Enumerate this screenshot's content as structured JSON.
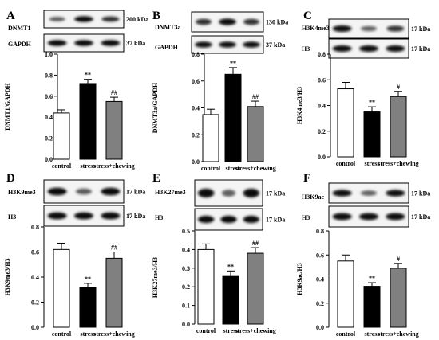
{
  "colors": {
    "control": "#ffffff",
    "stress": "#000000",
    "stress_chewing": "#808080",
    "bar_stroke": "#000000"
  },
  "chart_data": [
    {
      "panel": "A",
      "type": "bar",
      "categories": [
        "control",
        "stress",
        "stress+chewing"
      ],
      "values": [
        0.44,
        0.72,
        0.55
      ],
      "errors": [
        0.03,
        0.04,
        0.04
      ],
      "significance": [
        "",
        "**",
        "##"
      ],
      "ylabel": "DNMT1/GAPDH",
      "ylim": [
        0,
        1.0
      ],
      "yticks": [
        "0.0",
        "0.2",
        "0.4",
        "0.6",
        "0.8",
        "1.0"
      ],
      "blots": [
        {
          "protein": "DNMT1",
          "kda": "200 kDa",
          "bands": [
            "weak",
            "strong",
            "medium"
          ]
        },
        {
          "protein": "GAPDH",
          "kda": "37 kDa",
          "bands": [
            "strong",
            "strong",
            "strong"
          ]
        }
      ]
    },
    {
      "panel": "B",
      "type": "bar",
      "categories": [
        "control",
        "stress",
        "stress+chewing"
      ],
      "values": [
        0.35,
        0.65,
        0.41
      ],
      "errors": [
        0.04,
        0.05,
        0.04
      ],
      "significance": [
        "",
        "**",
        "##"
      ],
      "ylabel": "DNMT3a/GAPDH",
      "ylim": [
        0,
        0.8
      ],
      "yticks": [
        "0.0",
        "0.2",
        "0.4",
        "0.6",
        "0.8"
      ],
      "blots": [
        {
          "protein": "DNMT3a",
          "kda": "130 kDa",
          "bands": [
            "medium",
            "strong",
            "medium"
          ]
        },
        {
          "protein": "GAPDH",
          "kda": "37 kDa",
          "bands": [
            "strong",
            "strong",
            "strong"
          ]
        }
      ]
    },
    {
      "panel": "C",
      "type": "bar",
      "categories": [
        "control",
        "stress",
        "stress+chewing"
      ],
      "values": [
        0.53,
        0.35,
        0.47
      ],
      "errors": [
        0.05,
        0.04,
        0.04
      ],
      "significance": [
        "",
        "**",
        "#"
      ],
      "ylabel": "H3K4me3/H3",
      "ylim": [
        0,
        0.8
      ],
      "yticks": [
        "0.0",
        "0.2",
        "0.4",
        "0.6",
        "0.8"
      ],
      "blots": [
        {
          "protein": "H3K4me3",
          "kda": "17 kDa",
          "bands": [
            "strong",
            "weak",
            "medium"
          ]
        },
        {
          "protein": "H3",
          "kda": "17 kDa",
          "bands": [
            "strong",
            "strong",
            "strong"
          ]
        }
      ]
    },
    {
      "panel": "D",
      "type": "bar",
      "categories": [
        "control",
        "stress",
        "stress+chewing"
      ],
      "values": [
        0.62,
        0.32,
        0.55
      ],
      "errors": [
        0.05,
        0.03,
        0.05
      ],
      "significance": [
        "",
        "**",
        "##"
      ],
      "ylabel": "H3K9me3/H3",
      "ylim": [
        0,
        0.8
      ],
      "yticks": [
        "0.0",
        "0.2",
        "0.4",
        "0.6",
        "0.8"
      ],
      "blots": [
        {
          "protein": "H3K9me3",
          "kda": "17 kDa",
          "bands": [
            "strong",
            "weak",
            "strong"
          ]
        },
        {
          "protein": "H3",
          "kda": "17 kDa",
          "bands": [
            "strong",
            "strong",
            "strong"
          ]
        }
      ]
    },
    {
      "panel": "E",
      "type": "bar",
      "categories": [
        "control",
        "stress",
        "stress+chewing"
      ],
      "values": [
        0.4,
        0.26,
        0.38
      ],
      "errors": [
        0.03,
        0.025,
        0.03
      ],
      "significance": [
        "",
        "**",
        "##"
      ],
      "ylabel": "H3K27me3/H3",
      "ylim": [
        0,
        0.5
      ],
      "yticks": [
        "0.0",
        "0.1",
        "0.2",
        "0.3",
        "0.4",
        "0.5"
      ],
      "blots": [
        {
          "protein": "H3K27me3",
          "kda": "17 kDa",
          "bands": [
            "strong",
            "weak",
            "strong"
          ]
        },
        {
          "protein": "H3",
          "kda": "17 kDa",
          "bands": [
            "strong",
            "strong",
            "strong"
          ]
        }
      ]
    },
    {
      "panel": "F",
      "type": "bar",
      "categories": [
        "control",
        "stress",
        "stress+chewing"
      ],
      "values": [
        0.55,
        0.34,
        0.49
      ],
      "errors": [
        0.05,
        0.03,
        0.04
      ],
      "significance": [
        "",
        "**",
        "#"
      ],
      "ylabel": "H3K9ac/H3",
      "ylim": [
        0,
        0.8
      ],
      "yticks": [
        "0.0",
        "0.2",
        "0.4",
        "0.6",
        "0.8"
      ],
      "blots": [
        {
          "protein": "H3K9ac",
          "kda": "17 kDa",
          "bands": [
            "strong",
            "weak",
            "strong"
          ]
        },
        {
          "protein": "H3",
          "kda": "17 kDa",
          "bands": [
            "strong",
            "strong",
            "strong"
          ]
        }
      ]
    }
  ]
}
